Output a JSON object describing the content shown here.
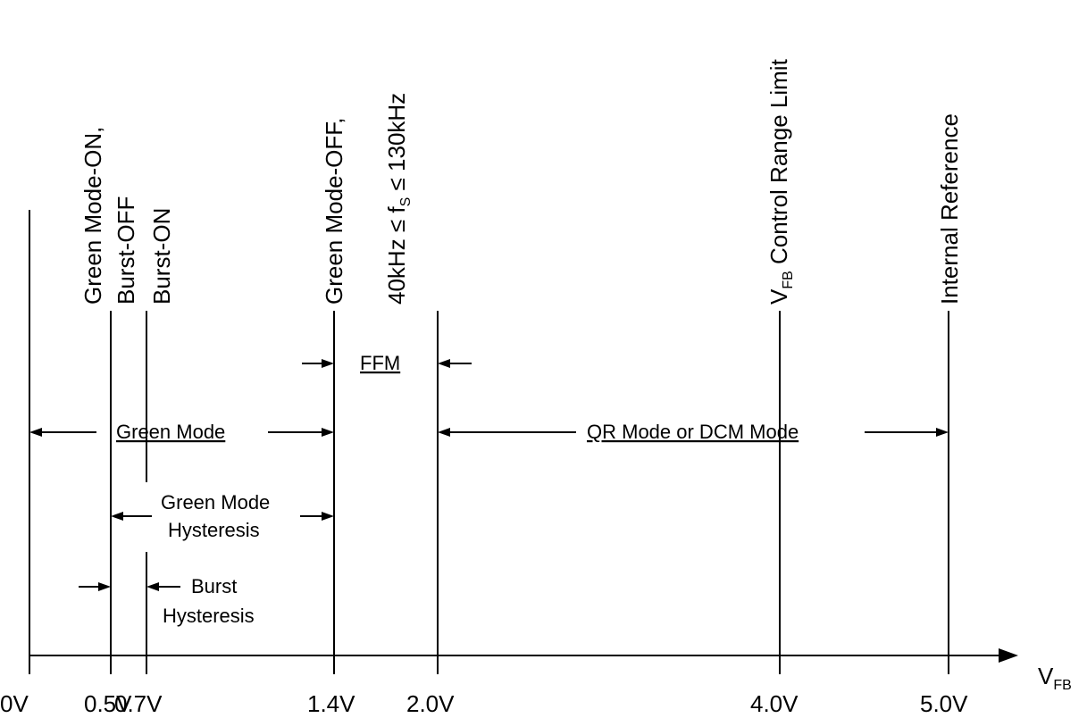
{
  "axis": {
    "label_main": "V",
    "label_sub": "FB",
    "ticks": [
      "0V",
      "0.5V",
      "0.7V",
      "1.4V",
      "2.0V",
      "4.0V",
      "5.0V"
    ]
  },
  "markers": {
    "green_on_line1": "Green Mode-ON,",
    "green_on_line2": "Burst-OFF",
    "burst_on": "Burst-ON",
    "green_off": "Green Mode-OFF,",
    "freq_range_a": "40kHz ≤ f",
    "freq_range_sub": "S",
    "freq_range_b": " ≤ 130kHz",
    "vfb_main": "V",
    "vfb_sub": "FB",
    "vfb_rest": " Control Range Limit",
    "internal_ref": "Internal Reference"
  },
  "regions": {
    "green_mode": "Green Mode",
    "ffm": "FFM",
    "qr_dcm": "QR Mode or DCM Mode",
    "green_hyst_1": "Green Mode",
    "green_hyst_2": "Hysteresis",
    "burst_hyst_1": "Burst",
    "burst_hyst_2": "Hysteresis"
  }
}
